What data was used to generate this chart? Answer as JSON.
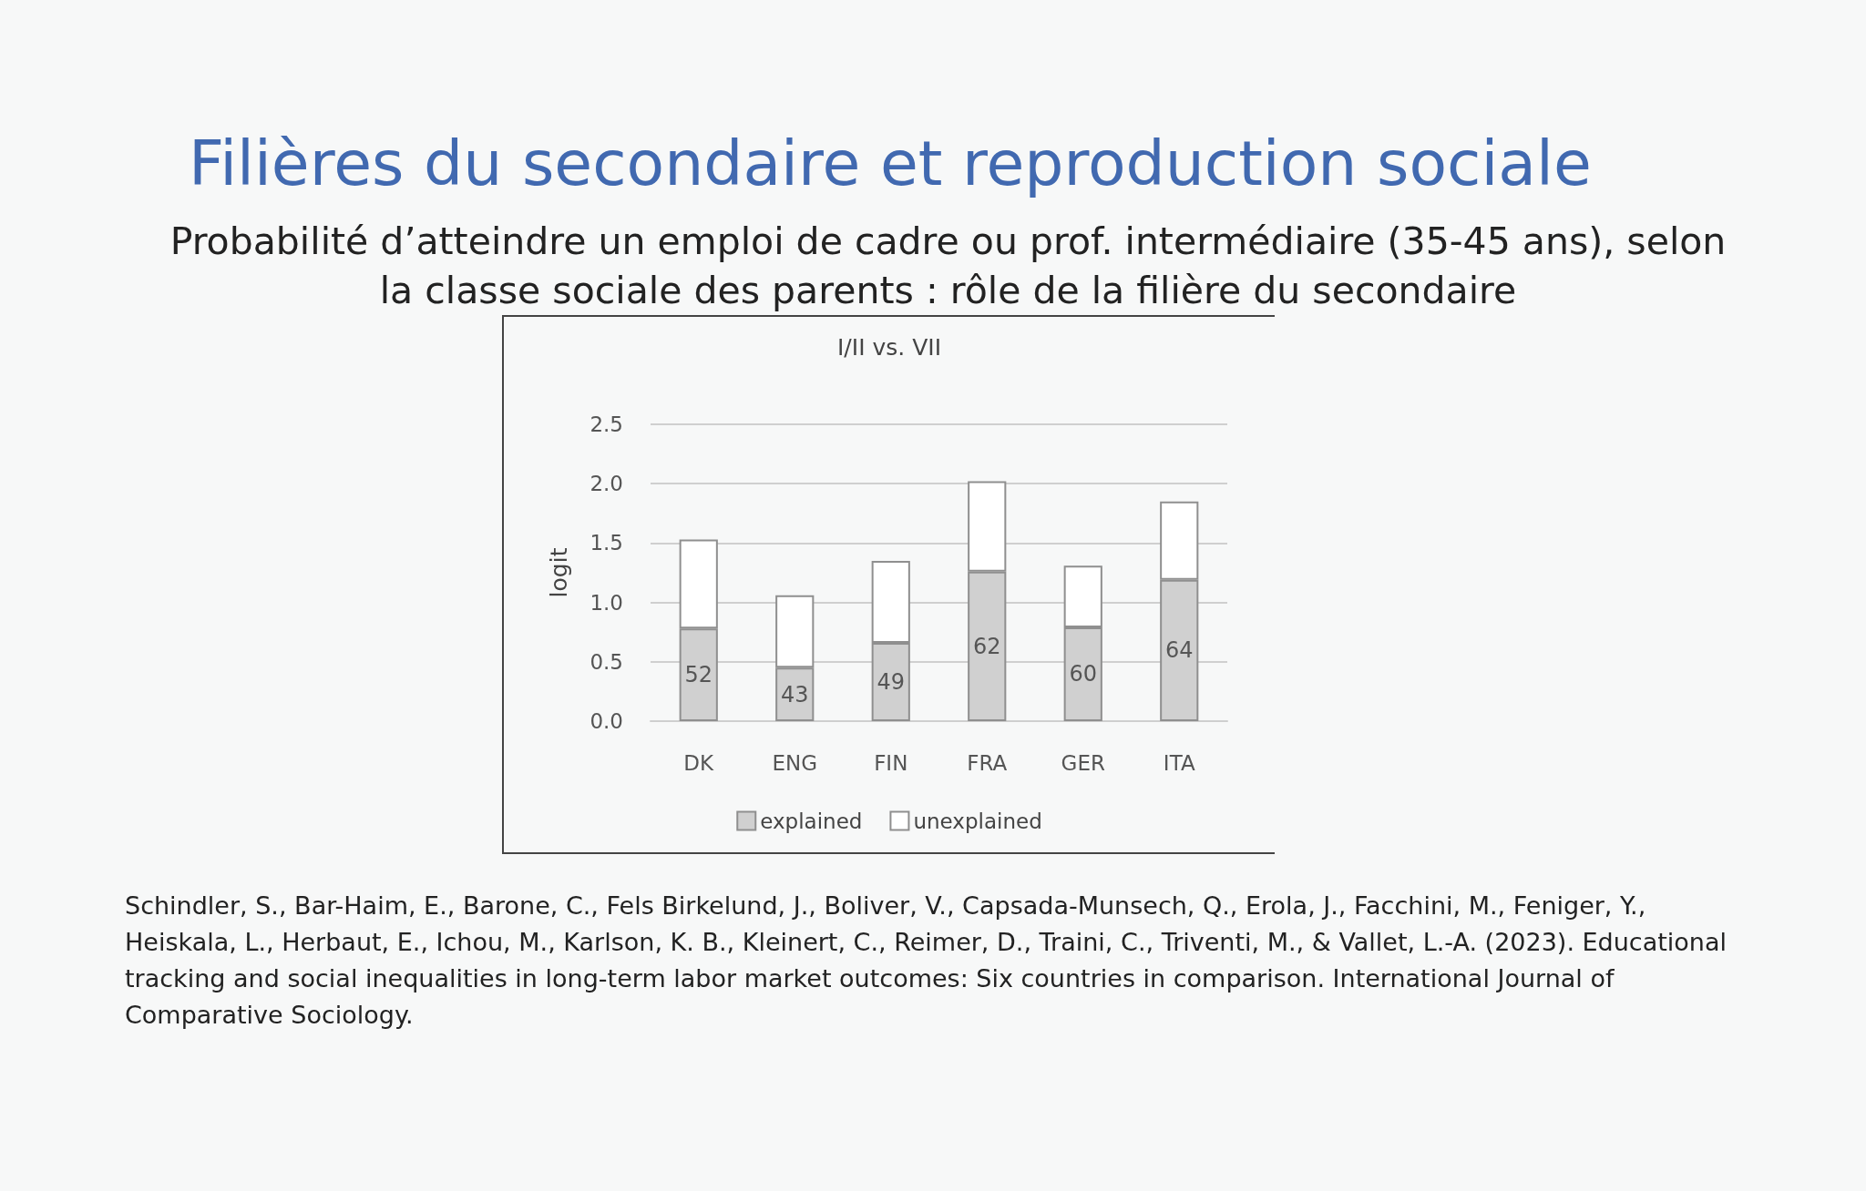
{
  "chart_data": {
    "type": "bar",
    "title": "Filières du secondaire et reproduction sociale",
    "subtitle": "Probabilité d’atteindre un emploi de cadre ou prof. intermédiaire (35-45 ans), selon la classe sociale des parents : rôle de la filière du secondaire",
    "annotations": [
      "I/II vs. VII",
      {
        "text": "52",
        "x": "DK",
        "y": 0.78
      },
      {
        "text": "43",
        "x": "ENG",
        "y": 0.45
      },
      {
        "text": "49",
        "x": "FIN",
        "y": 0.66
      },
      {
        "text": "62",
        "x": "FRA",
        "y": 1.26
      },
      {
        "text": "60",
        "x": "GER",
        "y": 0.79
      },
      {
        "text": "64",
        "x": "ITA",
        "y": 1.19
      },
      "Schindler, S., Bar-Haim, E., Barone, C., Fels Birkelund, J., Boliver, V., Capsada-Munsech, Q., Erola, J., Facchini, M., Feniger, Y., Heiskala, L., Herbaut, E., Ichou, M., Karlson, K. B., Kleinert, C., Reimer, D., Traini, C., Triventi, M., & Vallet, L.-A. (2023). Educational tracking and social inequalities in long-term labor market outcomes: Six countries in comparison. International Journal of Comparative Sociology."
    ],
    "ylabel": "logit",
    "categories": [
      "DK",
      "ENG",
      "FIN",
      "FRA",
      "GER",
      "ITA"
    ],
    "series": [
      {
        "name": "explained",
        "color": "#d0d0d0",
        "values": [
          0.78,
          0.45,
          0.66,
          1.26,
          0.79,
          1.19
        ]
      },
      {
        "name": "unexplained",
        "color": "#ffffff",
        "values": [
          0.75,
          0.61,
          0.69,
          0.76,
          0.52,
          0.66
        ]
      }
    ],
    "stacked": true,
    "ylim": [
      0,
      2.5
    ],
    "yticks": [
      {
        "value": 0,
        "label": "0.0"
      },
      0.5,
      {
        "value": 1,
        "label": "1.0"
      },
      1.5,
      {
        "value": 2,
        "label": "2.0"
      },
      2.5
    ],
    "grid": "y",
    "legend": "bottom"
  }
}
